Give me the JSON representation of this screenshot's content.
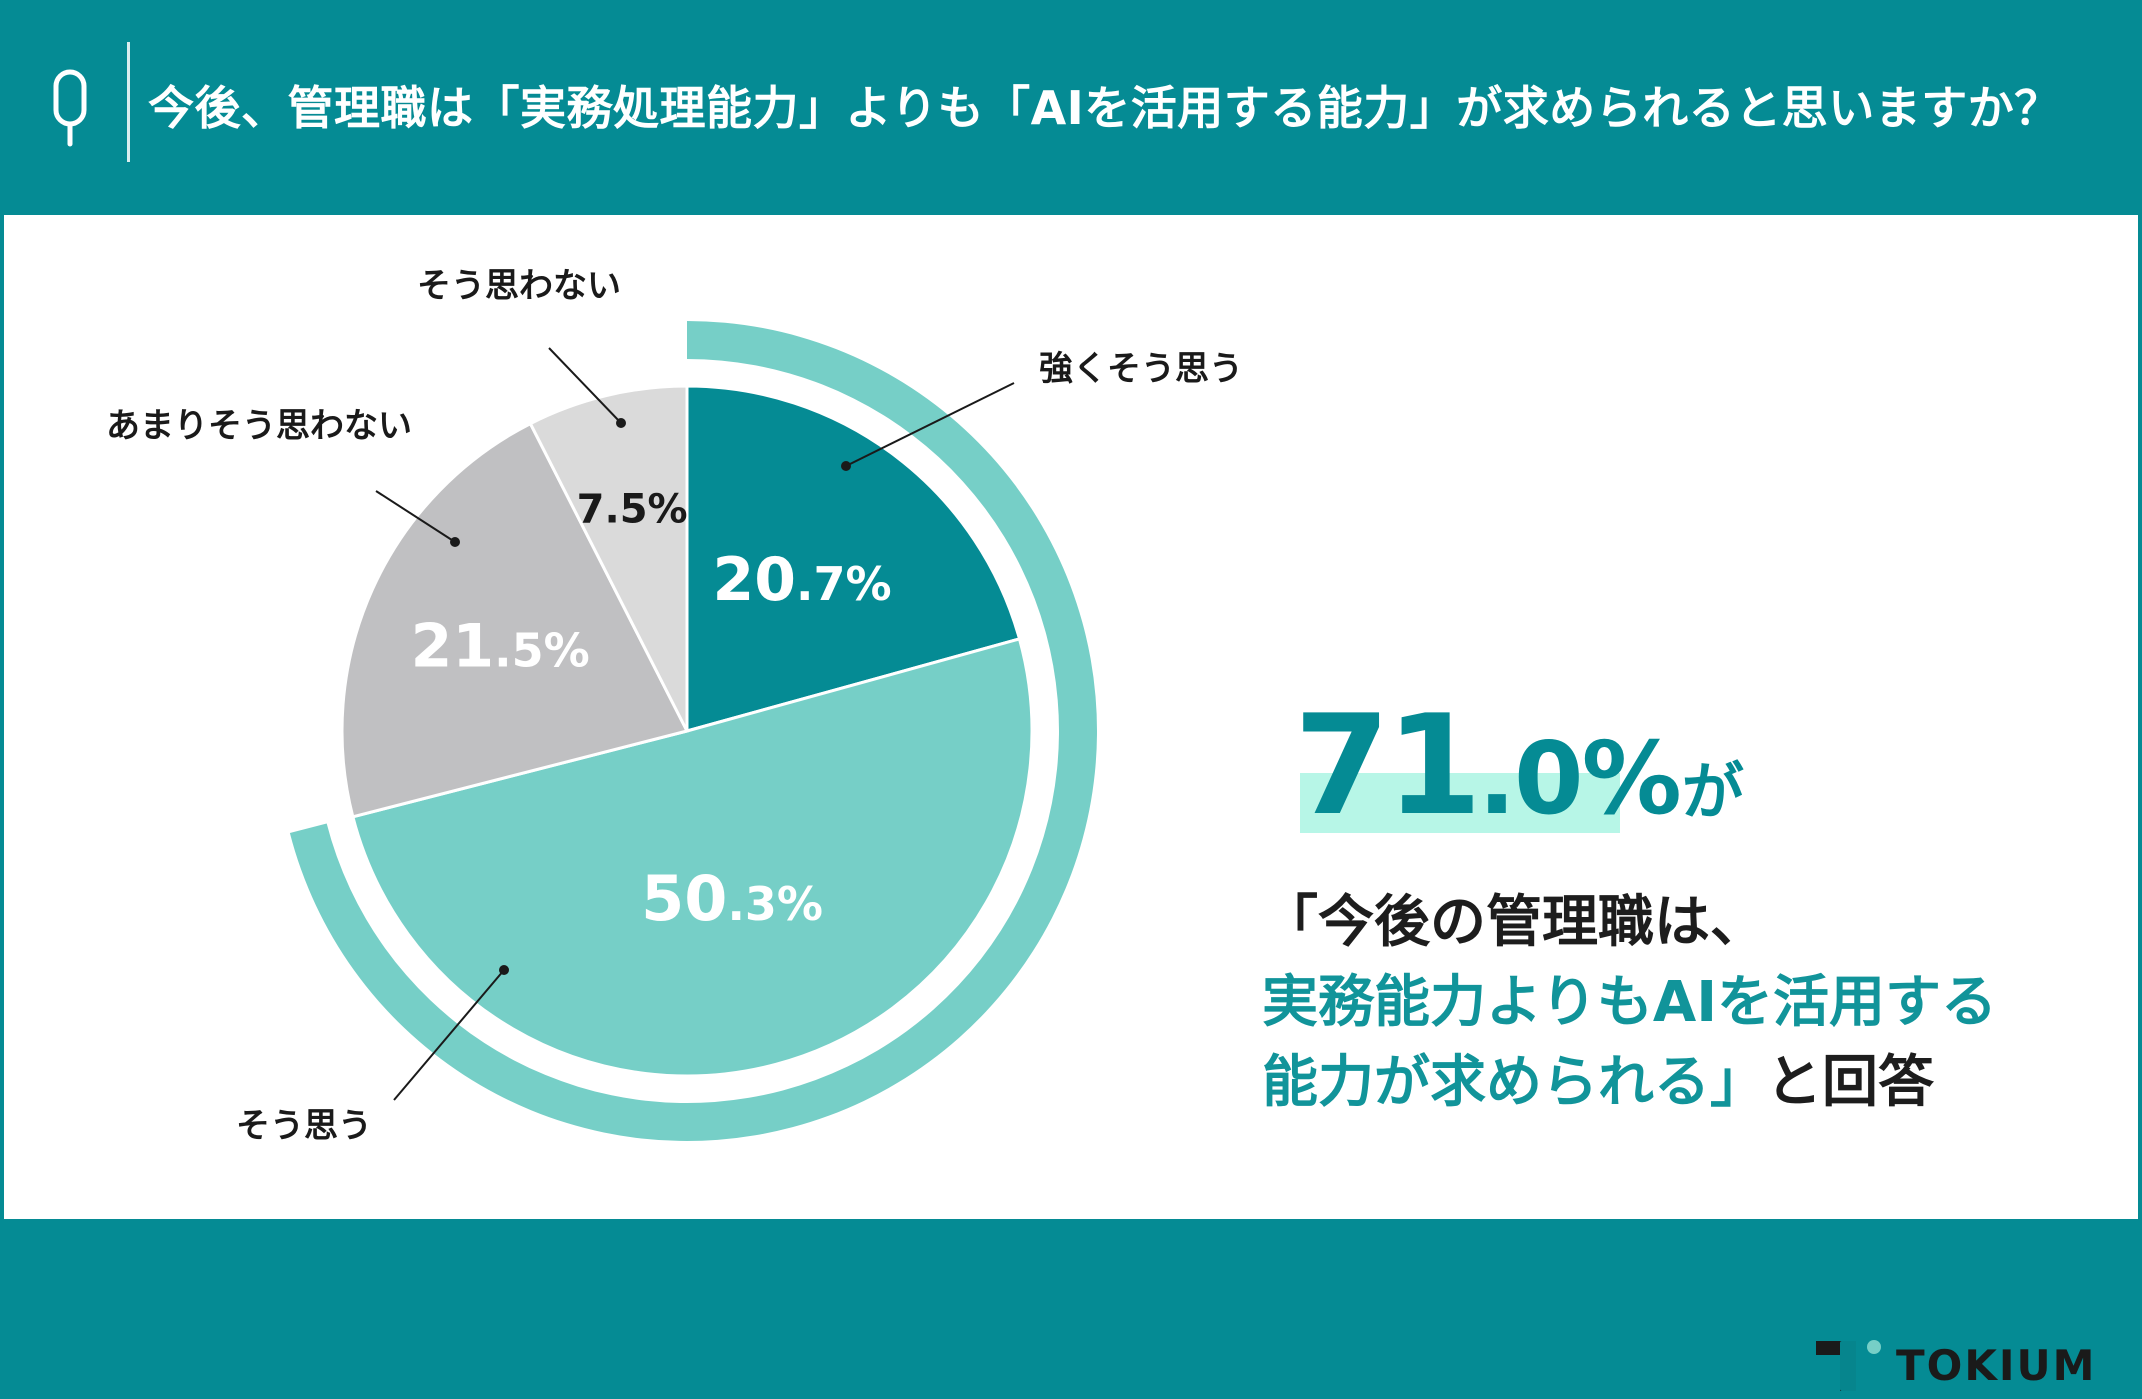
{
  "header": {
    "icon": "q-icon",
    "question": "今後、管理職は「実務処理能力」よりも「AIを活用する能力」が求められると思いますか？"
  },
  "chart_data": {
    "type": "pie",
    "slices": [
      {
        "label": "強くそう思う",
        "value": 20.7,
        "display_int": "20",
        "display_dec": ".7%",
        "color": "#058b94",
        "text_color": "#ffffff"
      },
      {
        "label": "そう思う",
        "value": 50.3,
        "display_int": "50",
        "display_dec": ".3%",
        "color": "#76cfc7",
        "text_color": "#ffffff"
      },
      {
        "label": "あまりそう思わない",
        "value": 21.5,
        "display_int": "21",
        "display_dec": ".5%",
        "color": "#c0c0c2",
        "text_color": "#ffffff"
      },
      {
        "label": "そう思わない",
        "value": 7.5,
        "display_int": "7",
        "display_dec": ".5%",
        "color": "#dadada",
        "text_color": "#1a1a1a"
      }
    ],
    "highlight_arc": {
      "covers": [
        "強くそう思う",
        "そう思う"
      ],
      "color": "#76cfc7"
    }
  },
  "headline": {
    "int": "71",
    "dec": ".0",
    "pct": "%",
    "suffix": "が"
  },
  "statement": {
    "line1": "「今後の管理職は、",
    "line2": "実務能力よりもAIを活用する",
    "line3_hl": "能力が求められる」",
    "line3_rest": "と回答"
  },
  "logo": {
    "text": "TOKIUM"
  },
  "colors": {
    "brand": "#058b94",
    "light_teal": "#76cfc7",
    "highlight_bar": "#b7f6e7",
    "gray": "#c0c0c2",
    "light_gray": "#dadada"
  }
}
